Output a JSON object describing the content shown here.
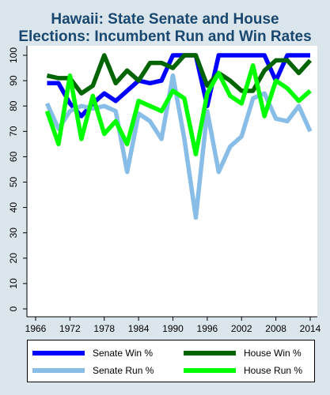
{
  "chart_data": {
    "type": "line",
    "title_line1": "Hawaii: State Senate and House",
    "title_line2": "Elections: Incumbent Run and Win Rates",
    "xlabel": "",
    "ylabel": "",
    "xlim": [
      1966,
      2014
    ],
    "ylim": [
      0,
      100
    ],
    "x_ticks": [
      "1966",
      "1972",
      "1978",
      "1984",
      "1990",
      "1996",
      "2002",
      "2008",
      "2014"
    ],
    "y_ticks": [
      "0",
      "10",
      "20",
      "30",
      "40",
      "50",
      "60",
      "70",
      "80",
      "90",
      "100"
    ],
    "grid": false,
    "legend_position": "bottom",
    "x": [
      1968,
      1970,
      1972,
      1974,
      1976,
      1978,
      1980,
      1982,
      1984,
      1986,
      1988,
      1990,
      1992,
      1994,
      1996,
      1998,
      2000,
      2002,
      2004,
      2006,
      2008,
      2010,
      2012,
      2014
    ],
    "series": [
      {
        "name": "Senate Win %",
        "color": "#0000ff",
        "values": [
          89,
          89,
          81,
          76,
          81,
          85,
          82,
          86,
          90,
          89,
          90,
          100,
          100,
          100,
          80,
          100,
          100,
          100,
          100,
          100,
          90,
          100,
          100,
          100
        ]
      },
      {
        "name": "House Win %",
        "color": "#006400",
        "values": [
          92,
          91,
          91,
          85,
          88,
          100,
          89,
          94,
          90,
          97,
          97,
          95,
          100,
          100,
          88,
          93,
          90,
          86,
          86,
          94,
          98,
          98,
          93,
          98
        ]
      },
      {
        "name": "Senate Run %",
        "color": "#87bde6",
        "values": [
          81,
          71,
          78,
          80,
          79,
          80,
          78,
          54,
          77,
          74,
          67,
          92,
          67,
          36,
          78,
          54,
          64,
          68,
          83,
          85,
          75,
          74,
          80,
          70
        ]
      },
      {
        "name": "House Run %",
        "color": "#00ff00",
        "values": [
          78,
          65,
          92,
          67,
          84,
          69,
          74,
          65,
          82,
          80,
          78,
          86,
          83,
          61,
          85,
          93,
          84,
          81,
          96,
          76,
          90,
          87,
          82,
          86
        ]
      }
    ]
  }
}
